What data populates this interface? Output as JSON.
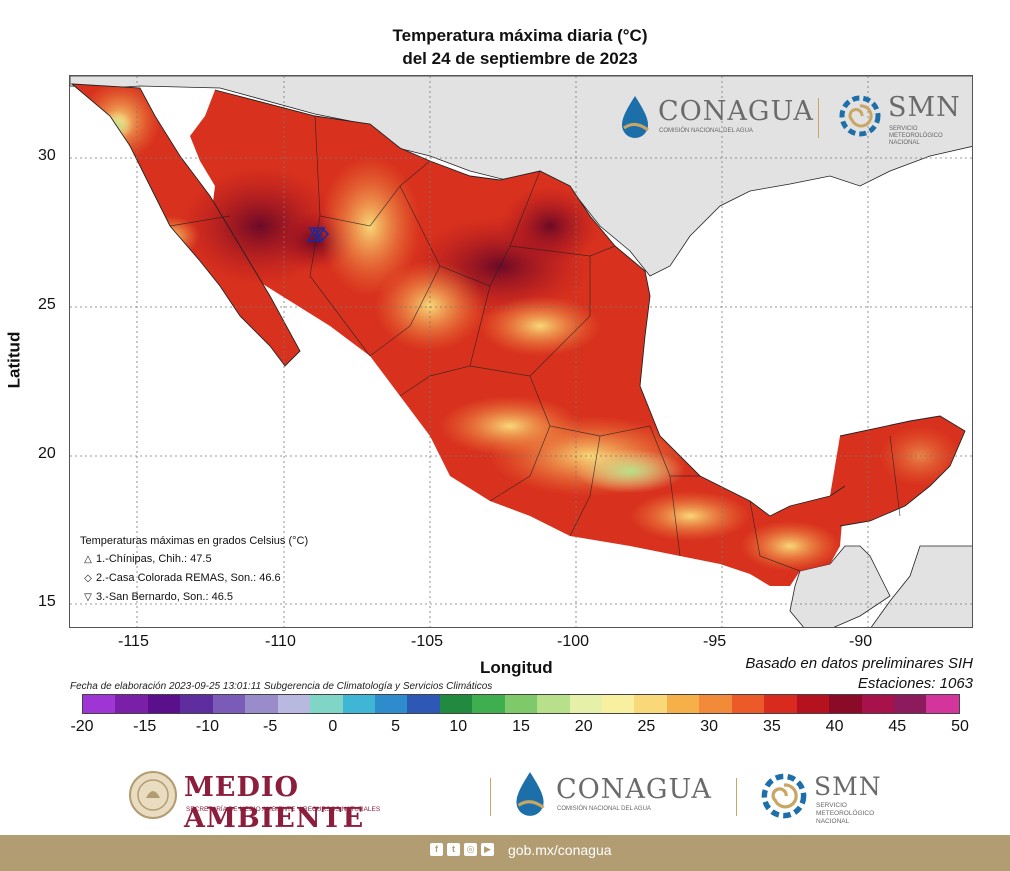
{
  "title_line1": "Temperatura máxima diaria (°C)",
  "title_line2": "del 24 de septiembre de 2023",
  "axes": {
    "xlabel": "Longitud",
    "ylabel": "Latitud",
    "x_ticks": [
      "-115",
      "-110",
      "-105",
      "-100",
      "-95",
      "-90"
    ],
    "y_ticks": [
      "30",
      "25",
      "20",
      "15"
    ]
  },
  "legend": {
    "title": "Temperaturas máximas en grados Celsius (°C)",
    "items": [
      {
        "symbol": "△",
        "label": "1.-Chínipas, Chih.: 47.5"
      },
      {
        "symbol": "◇",
        "label": "2.-Casa Colorada REMAS, Son.: 46.6"
      },
      {
        "symbol": "▽",
        "label": "3.-San Bernardo, Son.: 46.5"
      }
    ]
  },
  "notes": {
    "basado": "Basado en datos preliminares SIH",
    "estaciones": "Estaciones:  1063",
    "fecha": "Fecha de elaboración 2023-09-25 13:01:11 Subgerencia de Climatología y Servicios Climáticos"
  },
  "colorbar": {
    "labels": [
      "-20",
      "-15",
      "-10",
      "-5",
      "0",
      "5",
      "10",
      "15",
      "20",
      "25",
      "30",
      "35",
      "40",
      "45",
      "50"
    ],
    "colors": [
      "#a035d6",
      "#7a1fa8",
      "#5a0f8c",
      "#5f2e9e",
      "#7a5cb8",
      "#9a8ccb",
      "#b9b8e0",
      "#7fd6c6",
      "#3fb6d6",
      "#2e8ccc",
      "#2e58b5",
      "#218a3e",
      "#3fae4f",
      "#7ec96a",
      "#b8e08a",
      "#e6f0a8",
      "#f8f0a0",
      "#f8d878",
      "#f5b04a",
      "#f28a3a",
      "#ec5a2a",
      "#d82a1e",
      "#b5121e",
      "#8a0a28",
      "#a8124a",
      "#8c1a5c",
      "#d4359c"
    ]
  },
  "header_logos": {
    "conagua": "CONAGUA",
    "conagua_sub": "COMISIÓN NACIONAL DEL AGUA",
    "smn": "SMN",
    "smn_sub": "SERVICIO METEOROLÓGICO NACIONAL"
  },
  "footer_logos": {
    "medio_ambiente": "MEDIO AMBIENTE",
    "medio_ambiente_sub": "SECRETARÍA DE MEDIO AMBIENTE Y RECURSOS NATURALES",
    "conagua": "CONAGUA",
    "conagua_sub": "COMISIÓN NACIONAL DEL AGUA",
    "smn": "SMN",
    "smn_sub_1": "SERVICIO",
    "smn_sub_2": "METEOROLÓGICO",
    "smn_sub_3": "NACIONAL"
  },
  "brand_bar": {
    "social_icons": [
      "facebook-icon",
      "twitter-icon",
      "instagram-icon",
      "youtube-icon"
    ],
    "url": "gob.mx/conagua"
  }
}
